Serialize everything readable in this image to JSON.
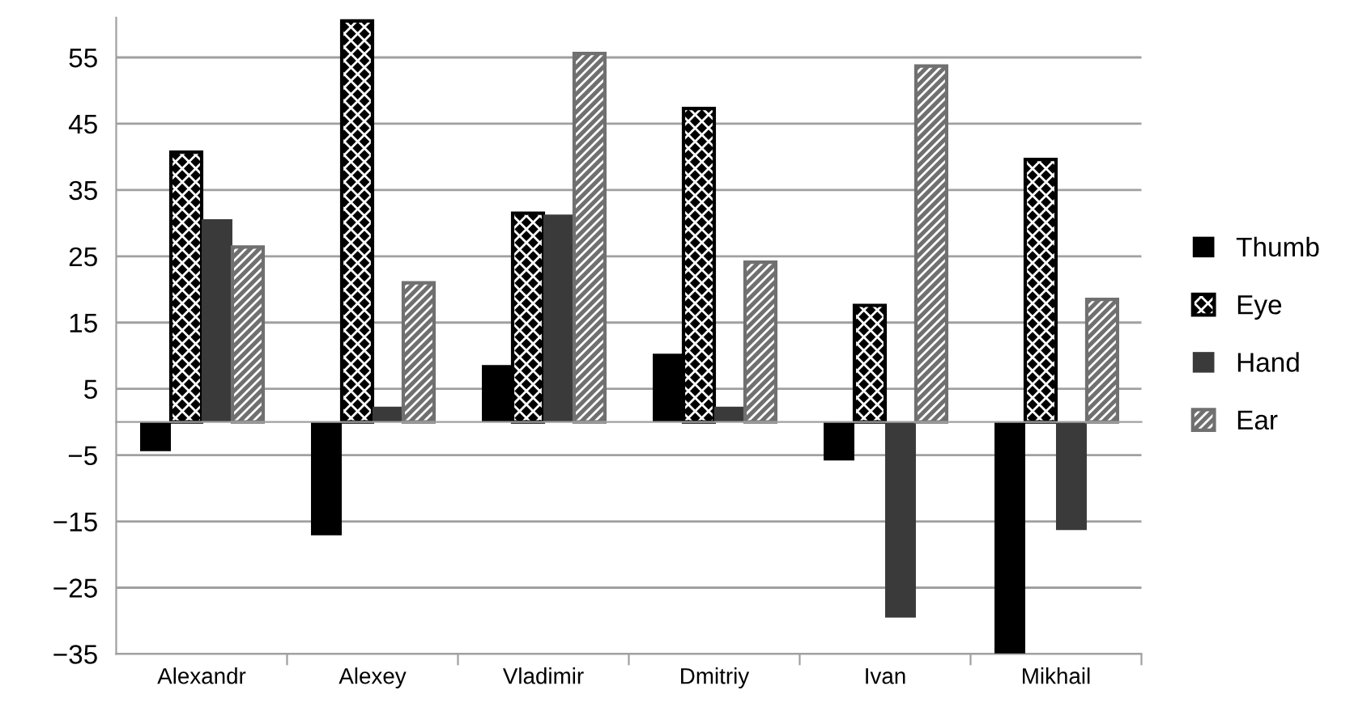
{
  "chart_data": {
    "type": "bar",
    "categories": [
      "Alexandr",
      "Alexey",
      "Vladimir",
      "Dmitriy",
      "Ivan",
      "Mikhail"
    ],
    "series": [
      {
        "name": "Thumb",
        "color": "#000000",
        "values": [
          -4.4,
          -17.1,
          8.6,
          10.3,
          -5.8,
          -34.9
        ]
      },
      {
        "name": "Eye",
        "color": "#000000",
        "values": [
          40.7,
          60.5,
          31.5,
          47.3,
          17.6,
          39.6
        ]
      },
      {
        "name": "Hand",
        "color": "#3a3a3a",
        "values": [
          30.6,
          2.3,
          31.3,
          2.3,
          -29.5,
          -16.3
        ]
      },
      {
        "name": "Ear",
        "color": "#707070",
        "values": [
          26.4,
          21.0,
          55.6,
          24.1,
          53.7,
          18.5
        ]
      }
    ],
    "ylim": [
      -35,
      61
    ],
    "yticks": [
      {
        "value": -35,
        "label": "−35"
      },
      {
        "value": -25,
        "label": "−25"
      },
      {
        "value": -15,
        "label": "−15"
      },
      {
        "value": -5,
        "label": "−5"
      },
      5,
      15,
      25,
      35,
      45,
      55
    ],
    "grid": "y",
    "legend": "right"
  }
}
